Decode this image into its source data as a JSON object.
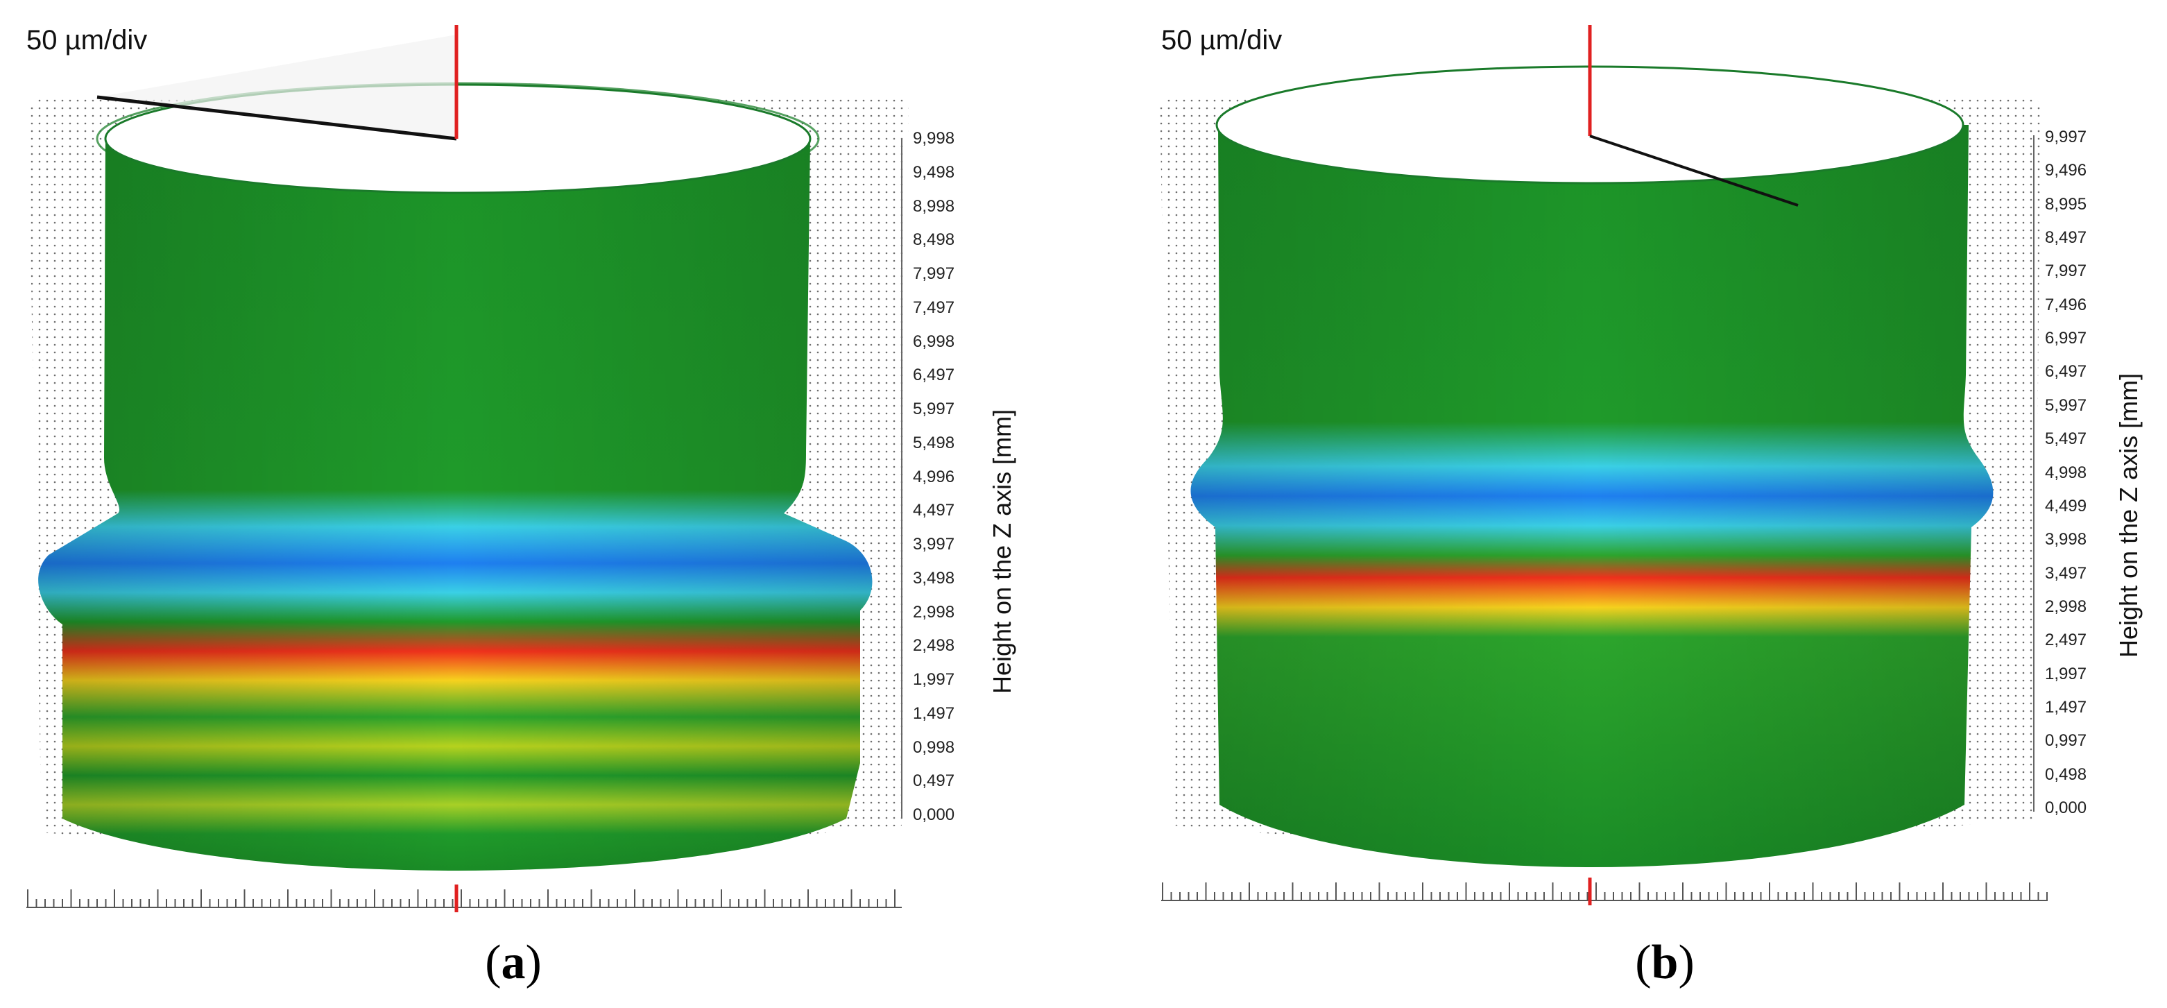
{
  "panels": [
    {
      "id": "a",
      "scale_label": "50 µm/div",
      "axis_title": "Height on the Z axis [mm]",
      "z_ticks": [
        "9,998",
        "9,498",
        "8,998",
        "8,498",
        "7,997",
        "7,497",
        "6,998",
        "6,497",
        "5,997",
        "5,498",
        "4,996",
        "4,497",
        "3,997",
        "3,498",
        "2,998",
        "2,498",
        "1,997",
        "1,497",
        "0,998",
        "0,497",
        "0,000"
      ],
      "caption_letter": "a"
    },
    {
      "id": "b",
      "scale_label": "50 µm/div",
      "axis_title": "Height on the Z axis [mm]",
      "z_ticks": [
        "9,997",
        "9,496",
        "8,995",
        "8,497",
        "7,997",
        "7,496",
        "6,997",
        "6,497",
        "5,997",
        "5,497",
        "4,998",
        "4,499",
        "3,998",
        "3,497",
        "2,998",
        "2,497",
        "1,997",
        "1,497",
        "0,997",
        "0,498",
        "0,000"
      ],
      "caption_letter": "b"
    }
  ],
  "colors": {
    "surface_green": "#1f9a2a",
    "neck_blue": "#30c8e8",
    "peak_red": "#ee2a1a",
    "marker_red": "#e02020"
  }
}
